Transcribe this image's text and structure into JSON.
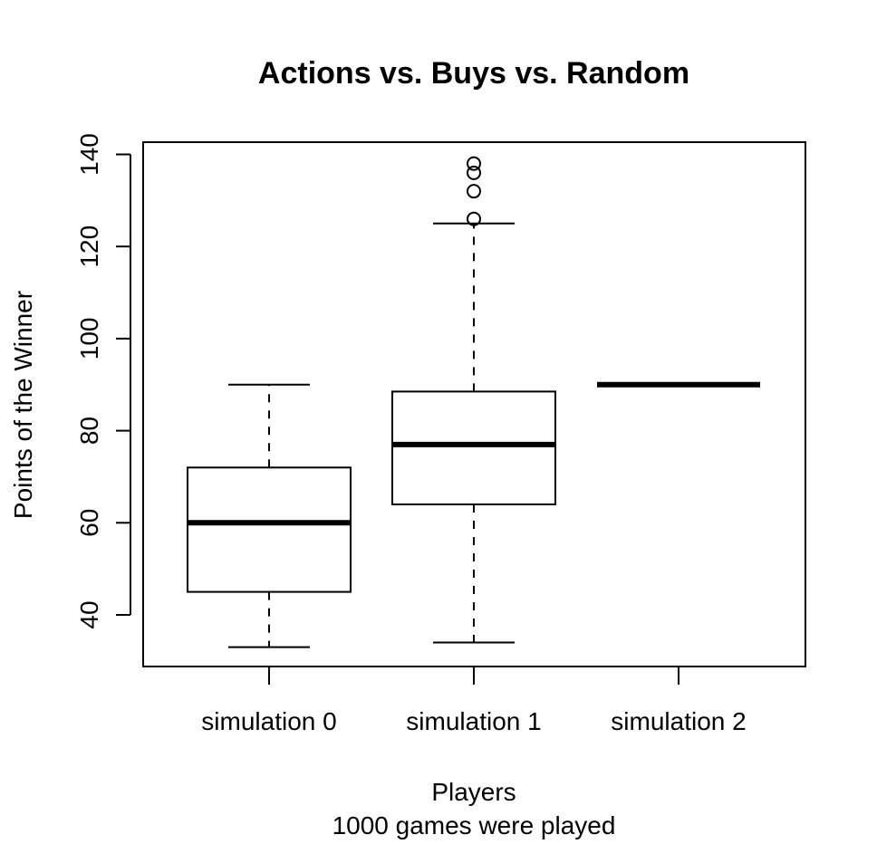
{
  "chart_data": {
    "type": "box",
    "title": "Actions vs. Buys vs. Random",
    "xlabel": "Players",
    "subtitle": "1000 games were played",
    "ylabel": "Points of the Winner",
    "ylim": [
      29,
      142
    ],
    "y_ticks": [
      40,
      60,
      80,
      100,
      120,
      140
    ],
    "categories": [
      "simulation 0",
      "simulation 1",
      "simulation 2"
    ],
    "boxes": [
      {
        "category": "simulation 0",
        "whisker_low": 33,
        "q1": 45,
        "median": 60,
        "q3": 72,
        "whisker_high": 90,
        "outliers": []
      },
      {
        "category": "simulation 1",
        "whisker_low": 34,
        "q1": 64,
        "median": 77,
        "q3": 88.5,
        "whisker_high": 125,
        "outliers": [
          126,
          132,
          136,
          138
        ]
      },
      {
        "category": "simulation 2",
        "whisker_low": 90,
        "q1": 90,
        "median": 90,
        "q3": 90,
        "whisker_high": 90,
        "outliers": []
      }
    ],
    "colors": {
      "line": "#000000",
      "background": "#ffffff"
    }
  }
}
